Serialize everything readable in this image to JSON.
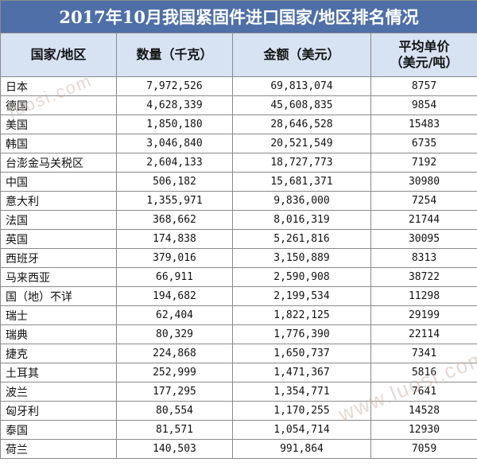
{
  "title": "2017年10月我国紧固件进口国家/地区排名情况",
  "headers": {
    "country": "国家/地区",
    "quantity": "数量（千克）",
    "amount": "金额（美元）",
    "price_line1": "平均单价",
    "price_line2": "（美元/吨）"
  },
  "rows": [
    {
      "country": "日本",
      "quantity": "7,972,526",
      "amount": "69,813,074",
      "price": "8757"
    },
    {
      "country": "德国",
      "quantity": "4,628,339",
      "amount": "45,608,835",
      "price": "9854"
    },
    {
      "country": "美国",
      "quantity": "1,850,180",
      "amount": "28,646,528",
      "price": "15483"
    },
    {
      "country": "韩国",
      "quantity": "3,046,840",
      "amount": "20,521,549",
      "price": "6735"
    },
    {
      "country": "台澎金马关税区",
      "quantity": "2,604,133",
      "amount": "18,727,773",
      "price": "7192"
    },
    {
      "country": "中国",
      "quantity": "506,182",
      "amount": "15,681,371",
      "price": "30980"
    },
    {
      "country": "意大利",
      "quantity": "1,355,971",
      "amount": "9,836,000",
      "price": "7254"
    },
    {
      "country": "法国",
      "quantity": "368,662",
      "amount": "8,016,319",
      "price": "21744"
    },
    {
      "country": "英国",
      "quantity": "174,838",
      "amount": "5,261,816",
      "price": "30095"
    },
    {
      "country": "西班牙",
      "quantity": "379,016",
      "amount": "3,150,889",
      "price": "8313"
    },
    {
      "country": "马来西亚",
      "quantity": "66,911",
      "amount": "2,590,908",
      "price": "38722"
    },
    {
      "country": "国（地）不详",
      "quantity": "194,682",
      "amount": "2,199,534",
      "price": "11298"
    },
    {
      "country": "瑞士",
      "quantity": "62,404",
      "amount": "1,822,125",
      "price": "29199"
    },
    {
      "country": "瑞典",
      "quantity": "80,329",
      "amount": "1,776,390",
      "price": "22114"
    },
    {
      "country": "捷克",
      "quantity": "224,868",
      "amount": "1,650,737",
      "price": "7341"
    },
    {
      "country": "土耳其",
      "quantity": "252,999",
      "amount": "1,471,367",
      "price": "5816"
    },
    {
      "country": "波兰",
      "quantity": "177,295",
      "amount": "1,354,771",
      "price": "7641"
    },
    {
      "country": "匈牙利",
      "quantity": "80,554",
      "amount": "1,170,255",
      "price": "14528"
    },
    {
      "country": "泰国",
      "quantity": "81,571",
      "amount": "1,054,714",
      "price": "12930"
    },
    {
      "country": "荷兰",
      "quantity": "140,503",
      "amount": "991,864",
      "price": "7059"
    }
  ],
  "watermark": "luosi.com",
  "watermark2": "www.luosi.com"
}
